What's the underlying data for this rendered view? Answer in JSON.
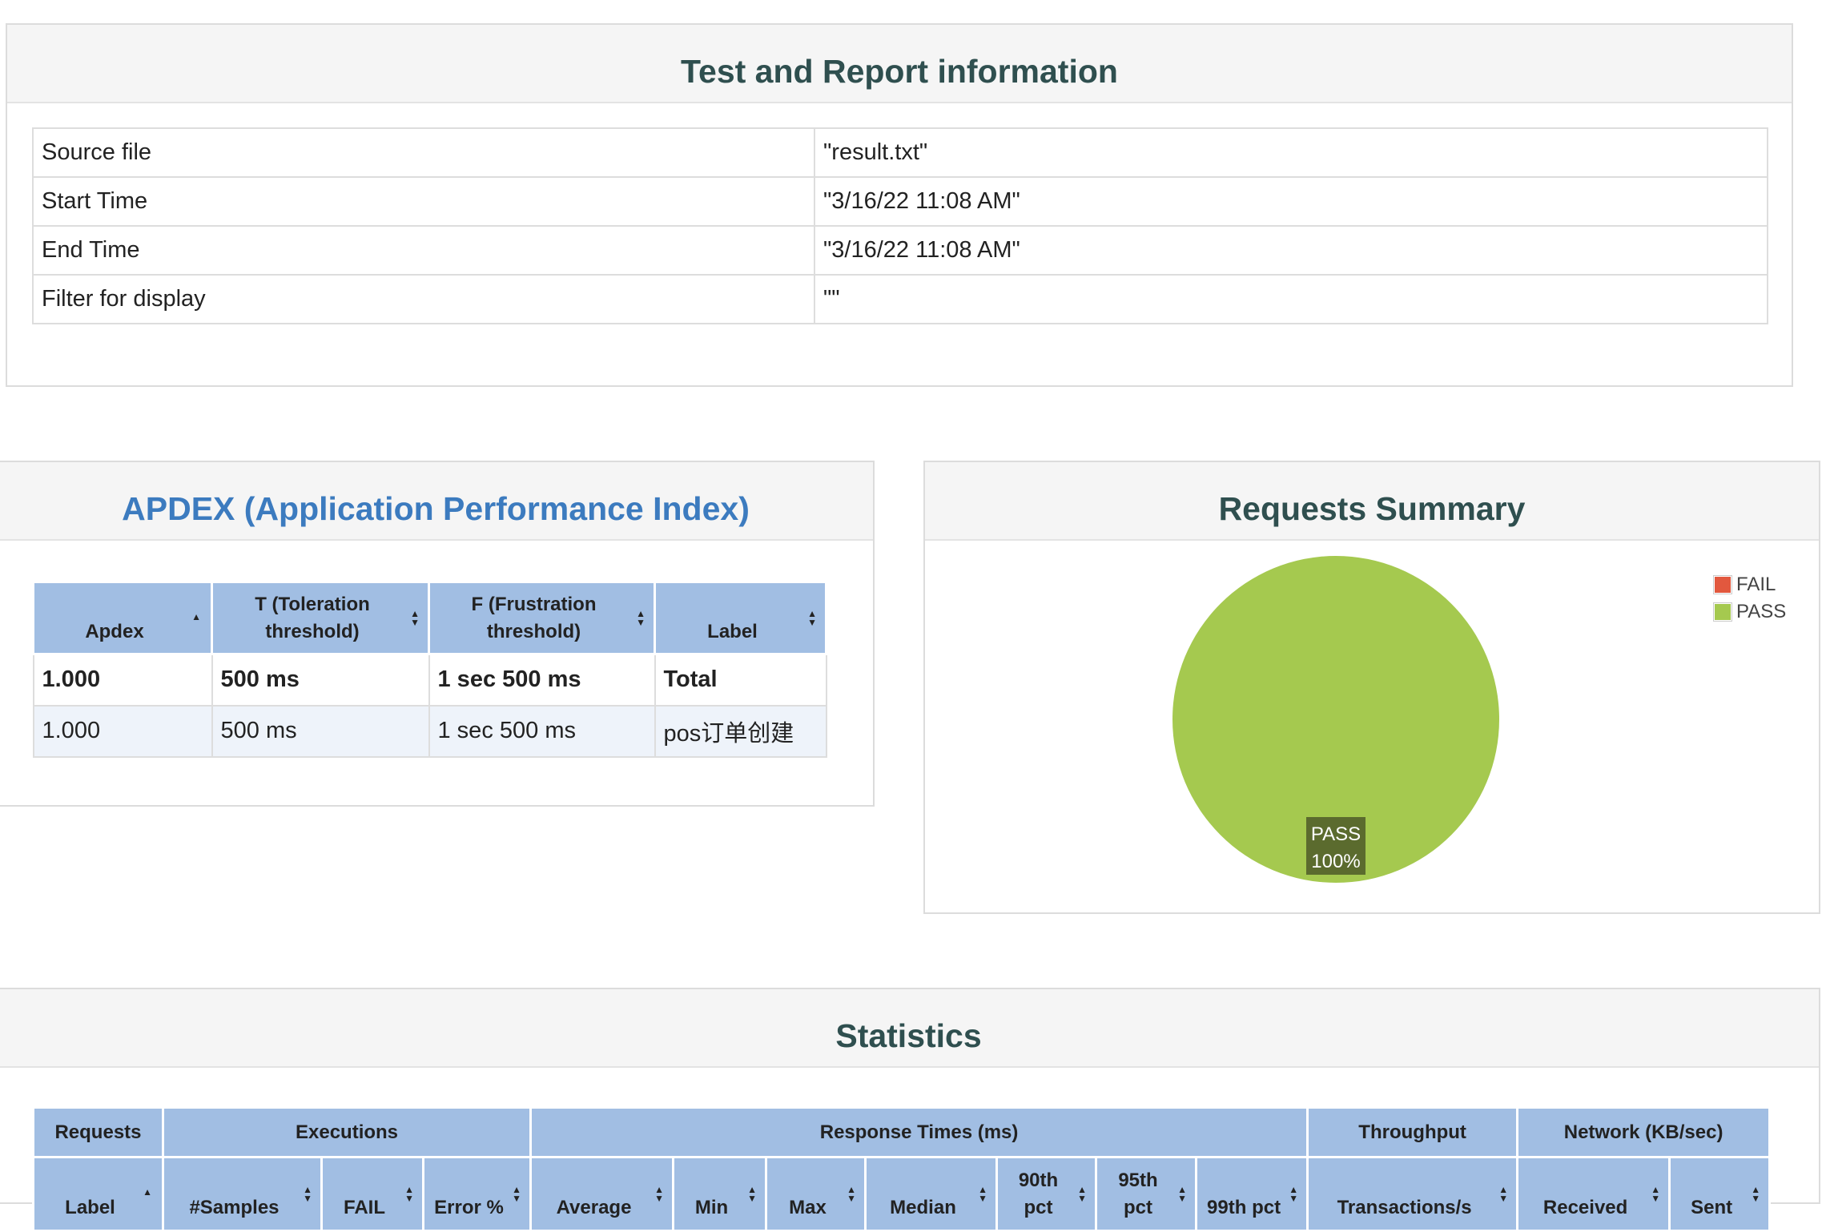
{
  "report_info": {
    "title": "Test and Report information",
    "rows": [
      {
        "key": "Source file",
        "value": "\"result.txt\""
      },
      {
        "key": "Start Time",
        "value": "\"3/16/22 11:08 AM\""
      },
      {
        "key": "End Time",
        "value": "\"3/16/22 11:08 AM\""
      },
      {
        "key": "Filter for display",
        "value": "\"\""
      }
    ]
  },
  "apdex": {
    "title": "APDEX (Application Performance Index)",
    "title_color": "#3c7bbf",
    "columns": [
      {
        "line1": "",
        "line2": "Apdex",
        "sort": "asc"
      },
      {
        "line1": "T (Toleration",
        "line2": "threshold)",
        "sort": "both"
      },
      {
        "line1": "F (Frustration",
        "line2": "threshold)",
        "sort": "both"
      },
      {
        "line1": "",
        "line2": "Label",
        "sort": "both"
      }
    ],
    "rows": [
      {
        "apdex": "1.000",
        "t": "500 ms",
        "f": "1 sec 500 ms",
        "label": "Total",
        "bold": true
      },
      {
        "apdex": "1.000",
        "t": "500 ms",
        "f": "1 sec 500 ms",
        "label": "pos订单创建",
        "bold": false
      }
    ]
  },
  "requests_summary": {
    "title": "Requests Summary",
    "legend": [
      {
        "name": "FAIL",
        "color": "#e2583e"
      },
      {
        "name": "PASS",
        "color": "#a5c94f"
      }
    ],
    "slice_label": {
      "name": "PASS",
      "percent": "100%"
    }
  },
  "chart_data": {
    "type": "pie",
    "title": "Requests Summary",
    "categories": [
      "FAIL",
      "PASS"
    ],
    "values": [
      0,
      100
    ],
    "colors": [
      "#e2583e",
      "#a5c94f"
    ],
    "legend": "top-right"
  },
  "statistics": {
    "title": "Statistics",
    "groups": [
      "Requests",
      "Executions",
      "Response Times (ms)",
      "Throughput",
      "Network (KB/sec)"
    ],
    "columns": [
      {
        "line1": "",
        "line2": "Label",
        "sort": "asc"
      },
      {
        "line1": "",
        "line2": "#Samples",
        "sort": "both"
      },
      {
        "line1": "",
        "line2": "FAIL",
        "sort": "both"
      },
      {
        "line1": "",
        "line2": "Error %",
        "sort": "both"
      },
      {
        "line1": "",
        "line2": "Average",
        "sort": "both"
      },
      {
        "line1": "",
        "line2": "Min",
        "sort": "both"
      },
      {
        "line1": "",
        "line2": "Max",
        "sort": "both"
      },
      {
        "line1": "",
        "line2": "Median",
        "sort": "both"
      },
      {
        "line1": "90th",
        "line2": "pct",
        "sort": "both"
      },
      {
        "line1": "95th",
        "line2": "pct",
        "sort": "both"
      },
      {
        "line1": "",
        "line2": "99th pct",
        "sort": "both"
      },
      {
        "line1": "",
        "line2": "Transactions/s",
        "sort": "both"
      },
      {
        "line1": "",
        "line2": "Received",
        "sort": "both"
      },
      {
        "line1": "",
        "line2": "Sent",
        "sort": "both"
      }
    ]
  }
}
